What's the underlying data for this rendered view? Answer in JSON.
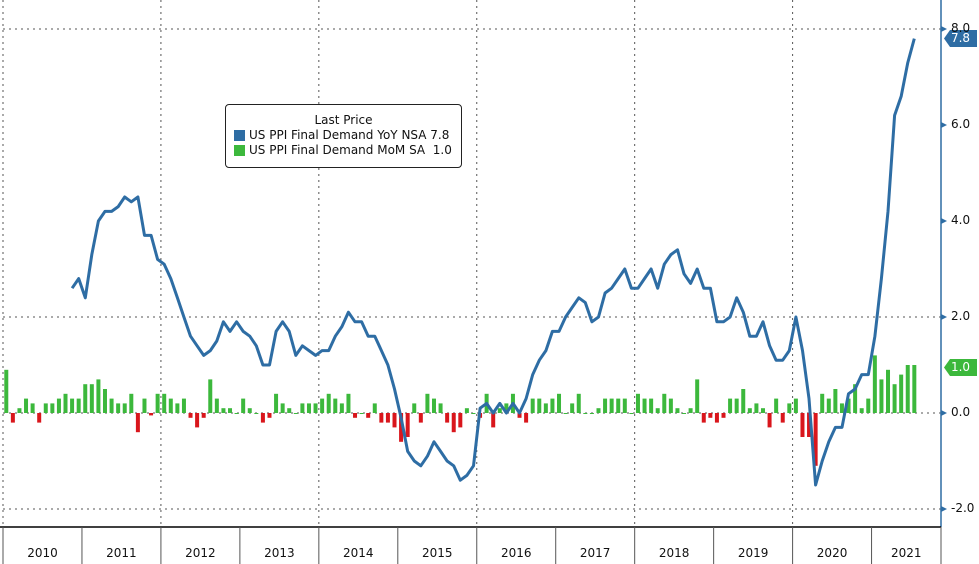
{
  "chart_data": {
    "type": "bar+line",
    "start": "2010-01",
    "legend": {
      "title": "Last Price",
      "placement": "top-left",
      "entries": [
        {
          "name": "US PPI Final Demand YoY NSA",
          "last": "7.8",
          "color": "#2e6da4"
        },
        {
          "name": "US PPI Final Demand MoM SA",
          "last": "1.0",
          "color": "#3cb83c"
        }
      ]
    },
    "negative_color": "#d9161c",
    "y_ticks": [
      "8.0",
      "6.0",
      "4.0",
      "2.0",
      "0.0",
      "-2.0"
    ],
    "ylim": [
      -2.2,
      8.6
    ],
    "x_labels": [
      "2010",
      "2011",
      "2012",
      "2013",
      "2014",
      "2015",
      "2016",
      "2017",
      "2018",
      "2019",
      "2020",
      "2021"
    ],
    "yoy_start_month_index": 10,
    "yoy": [
      2.6,
      2.8,
      2.4,
      3.3,
      4.0,
      4.2,
      4.2,
      4.3,
      4.5,
      4.4,
      4.5,
      3.7,
      3.7,
      3.2,
      3.1,
      2.8,
      2.4,
      2.0,
      1.6,
      1.4,
      1.2,
      1.3,
      1.5,
      1.9,
      1.7,
      1.9,
      1.7,
      1.6,
      1.4,
      1.0,
      1.0,
      1.7,
      1.9,
      1.7,
      1.2,
      1.4,
      1.3,
      1.2,
      1.3,
      1.3,
      1.6,
      1.8,
      2.1,
      1.9,
      1.9,
      1.6,
      1.6,
      1.3,
      1.0,
      0.5,
      -0.1,
      -0.8,
      -1.0,
      -1.1,
      -0.9,
      -0.6,
      -0.8,
      -1.0,
      -1.1,
      -1.4,
      -1.3,
      -1.1,
      0.1,
      0.2,
      0.0,
      0.2,
      0.0,
      0.2,
      0.0,
      0.3,
      0.8,
      1.1,
      1.3,
      1.7,
      1.7,
      2.0,
      2.2,
      2.4,
      2.3,
      1.9,
      2.0,
      2.5,
      2.6,
      2.8,
      3.0,
      2.6,
      2.6,
      2.8,
      3.0,
      2.6,
      3.1,
      3.3,
      3.4,
      2.9,
      2.7,
      3.0,
      2.6,
      2.6,
      1.9,
      1.9,
      2.0,
      2.4,
      2.1,
      1.6,
      1.6,
      1.9,
      1.4,
      1.1,
      1.1,
      1.3,
      2.0,
      1.3,
      0.3,
      -1.5,
      -1.0,
      -0.6,
      -0.3,
      -0.3,
      0.4,
      0.5,
      0.8,
      0.8,
      1.6,
      2.8,
      4.2,
      6.2,
      6.6,
      7.3,
      7.8
    ],
    "mom": [
      0.9,
      -0.2,
      0.1,
      0.3,
      0.2,
      -0.2,
      0.2,
      0.2,
      0.3,
      0.4,
      0.3,
      0.3,
      0.6,
      0.6,
      0.7,
      0.5,
      0.3,
      0.2,
      0.2,
      0.4,
      -0.4,
      0.3,
      -0.05,
      0.4,
      0.4,
      0.3,
      0.2,
      0.3,
      -0.1,
      -0.3,
      -0.1,
      0.7,
      0.3,
      0.1,
      0.1,
      0.0,
      0.3,
      0.1,
      0.0,
      -0.2,
      -0.1,
      0.4,
      0.2,
      0.1,
      0.0,
      0.2,
      0.2,
      0.2,
      0.3,
      0.4,
      0.3,
      0.2,
      0.4,
      -0.1,
      0.0,
      -0.1,
      0.2,
      -0.2,
      -0.2,
      -0.3,
      -0.6,
      -0.5,
      0.2,
      -0.2,
      0.4,
      0.3,
      0.2,
      -0.2,
      -0.4,
      -0.3,
      0.1,
      0.0,
      -0.1,
      0.4,
      -0.3,
      0.1,
      0.2,
      0.4,
      -0.1,
      -0.2,
      0.3,
      0.3,
      0.2,
      0.3,
      0.4,
      0.0,
      0.2,
      0.4,
      0.0,
      0.0,
      0.1,
      0.3,
      0.3,
      0.3,
      0.3,
      0.0,
      0.4,
      0.3,
      0.3,
      0.1,
      0.4,
      0.3,
      0.1,
      0.0,
      0.1,
      0.7,
      -0.2,
      -0.1,
      -0.2,
      -0.1,
      0.3,
      0.3,
      0.5,
      0.1,
      0.2,
      0.1,
      -0.3,
      0.3,
      -0.2,
      0.2,
      0.3,
      -0.5,
      -0.5,
      -1.1,
      0.4,
      0.3,
      0.5,
      0.2,
      0.3,
      0.6,
      0.1,
      0.3,
      1.2,
      0.7,
      0.9,
      0.6,
      0.8,
      1.0,
      1.0
    ]
  }
}
